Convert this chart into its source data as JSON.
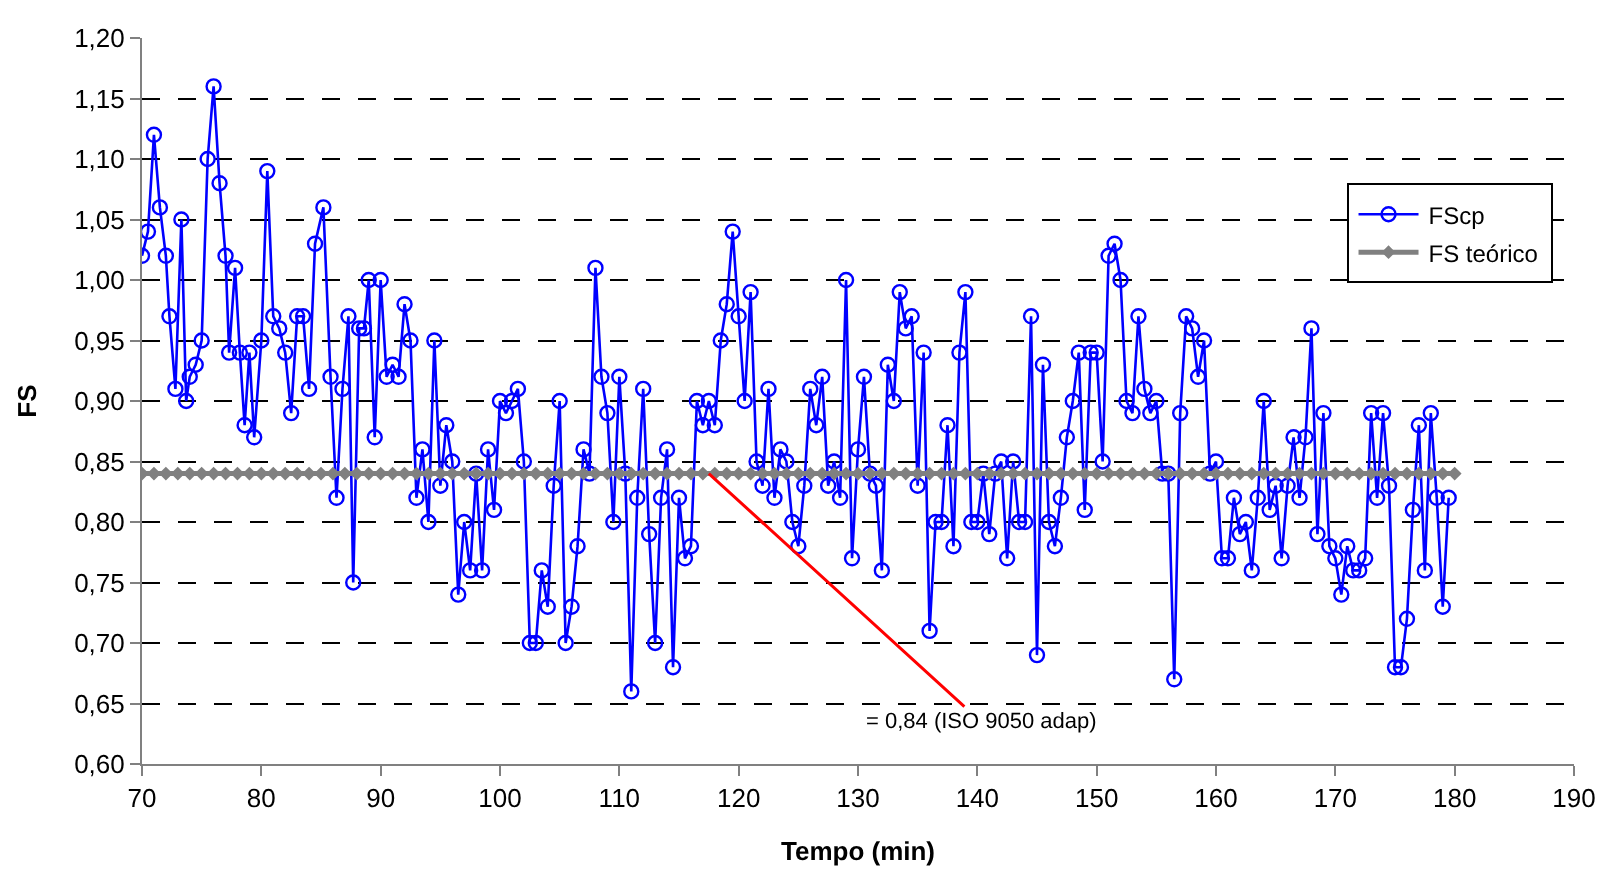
{
  "chart_data": {
    "type": "line",
    "xlabel": "Tempo (min)",
    "ylabel": "FS",
    "xlim": [
      70,
      190
    ],
    "xticks": [
      70,
      80,
      90,
      100,
      110,
      120,
      130,
      140,
      150,
      160,
      170,
      180,
      190
    ],
    "ylim": [
      0.6,
      1.2
    ],
    "yticks": [
      {
        "value": 0.6,
        "label": "0,60"
      },
      {
        "value": 0.65,
        "label": "0,65"
      },
      {
        "value": 0.7,
        "label": "0,70"
      },
      {
        "value": 0.75,
        "label": "0,75"
      },
      {
        "value": 0.8,
        "label": "0,80"
      },
      {
        "value": 0.85,
        "label": "0,85"
      },
      {
        "value": 0.9,
        "label": "0,90"
      },
      {
        "value": 0.95,
        "label": "0,95"
      },
      {
        "value": 1.0,
        "label": "1,00"
      },
      {
        "value": 1.05,
        "label": "1,05"
      },
      {
        "value": 1.1,
        "label": "1,10"
      },
      {
        "value": 1.15,
        "label": "1,15"
      },
      {
        "value": 1.2,
        "label": "1,20"
      }
    ],
    "grid": "y",
    "legend": "top right",
    "annotations": [
      {
        "text": "= 0,84 (ISO 9050 adap)",
        "x": 117.5,
        "y": 0.84
      }
    ],
    "series": [
      {
        "name": "FScp",
        "color": "#0000ff",
        "marker": "circle",
        "line_style": "solid",
        "x": [
          70.0,
          70.5,
          71.0,
          71.5,
          72.0,
          72.3,
          72.8,
          73.3,
          73.7,
          74.0,
          74.5,
          75.0,
          75.5,
          76.0,
          76.5,
          77.0,
          77.3,
          77.8,
          78.2,
          78.6,
          79.0,
          79.4,
          80.0,
          80.5,
          81.0,
          81.5,
          82.0,
          82.5,
          83.0,
          83.5,
          84.0,
          84.5,
          85.2,
          85.8,
          86.3,
          86.8,
          87.3,
          87.7,
          88.2,
          88.6,
          89.0,
          89.5,
          90.0,
          90.5,
          91.0,
          91.5,
          92.0,
          92.5,
          93.0,
          93.5,
          94.0,
          94.5,
          95.0,
          95.5,
          96.0,
          96.5,
          97.0,
          97.5,
          98.0,
          98.5,
          99.0,
          99.5,
          100.0,
          100.5,
          101.0,
          101.5,
          102.0,
          102.5,
          103.0,
          103.5,
          104.0,
          104.5,
          105.0,
          105.5,
          106.0,
          106.5,
          107.0,
          107.5,
          108.0,
          108.5,
          109.0,
          109.5,
          110.0,
          110.5,
          111.0,
          111.5,
          112.0,
          112.5,
          113.0,
          113.5,
          114.0,
          114.5,
          115.0,
          115.5,
          116.0,
          116.5,
          117.0,
          117.5,
          118.0,
          118.5,
          119.0,
          119.5,
          120.0,
          120.5,
          121.0,
          121.5,
          122.0,
          122.5,
          123.0,
          123.5,
          124.0,
          124.5,
          125.0,
          125.5,
          126.0,
          126.5,
          127.0,
          127.5,
          128.0,
          128.5,
          129.0,
          129.5,
          130.0,
          130.5,
          131.0,
          131.5,
          132.0,
          132.5,
          133.0,
          133.5,
          134.0,
          134.5,
          135.0,
          135.5,
          136.0,
          136.5,
          137.0,
          137.5,
          138.0,
          138.5,
          139.0,
          139.5,
          140.0,
          140.5,
          141.0,
          141.5,
          142.0,
          142.5,
          143.0,
          143.5,
          144.0,
          144.5,
          145.0,
          145.5,
          146.0,
          146.5,
          147.0,
          147.5,
          148.0,
          148.5,
          149.0,
          149.5,
          150.0,
          150.5,
          151.0,
          151.5,
          152.0,
          152.5,
          153.0,
          153.5,
          154.0,
          154.5,
          155.0,
          155.5,
          156.0,
          156.5,
          157.0,
          157.5,
          158.0,
          158.5,
          159.0,
          159.5,
          160.0,
          160.5,
          161.0,
          161.5,
          162.0,
          162.5,
          163.0,
          163.5,
          164.0,
          164.5,
          165.0,
          165.5,
          166.0,
          166.5,
          167.0,
          167.5,
          168.0,
          168.5,
          169.0,
          169.5,
          170.0,
          170.5,
          171.0,
          171.5,
          172.0,
          172.5,
          173.0,
          173.5,
          174.0,
          174.5,
          175.0,
          175.5,
          176.0,
          176.5,
          177.0,
          177.5,
          178.0,
          178.5,
          179.0,
          179.5
        ],
        "values": [
          1.02,
          1.04,
          1.12,
          1.06,
          1.02,
          0.97,
          0.91,
          1.05,
          0.9,
          0.92,
          0.93,
          0.95,
          1.1,
          1.16,
          1.08,
          1.02,
          0.94,
          1.01,
          0.94,
          0.88,
          0.94,
          0.87,
          0.95,
          1.09,
          0.97,
          0.96,
          0.94,
          0.89,
          0.97,
          0.97,
          0.91,
          1.03,
          1.06,
          0.92,
          0.82,
          0.91,
          0.97,
          0.75,
          0.96,
          0.96,
          1.0,
          0.87,
          1.0,
          0.92,
          0.93,
          0.92,
          0.98,
          0.95,
          0.82,
          0.86,
          0.8,
          0.95,
          0.83,
          0.88,
          0.85,
          0.74,
          0.8,
          0.76,
          0.84,
          0.76,
          0.86,
          0.81,
          0.9,
          0.89,
          0.9,
          0.91,
          0.85,
          0.7,
          0.7,
          0.76,
          0.73,
          0.83,
          0.9,
          0.7,
          0.73,
          0.78,
          0.86,
          0.84,
          1.01,
          0.92,
          0.89,
          0.8,
          0.92,
          0.84,
          0.66,
          0.82,
          0.91,
          0.79,
          0.7,
          0.82,
          0.86,
          0.68,
          0.82,
          0.77,
          0.78,
          0.9,
          0.88,
          0.9,
          0.88,
          0.95,
          0.98,
          1.04,
          0.97,
          0.9,
          0.99,
          0.85,
          0.83,
          0.91,
          0.82,
          0.86,
          0.85,
          0.8,
          0.78,
          0.83,
          0.91,
          0.88,
          0.92,
          0.83,
          0.85,
          0.82,
          1.0,
          0.77,
          0.86,
          0.92,
          0.84,
          0.83,
          0.76,
          0.93,
          0.9,
          0.99,
          0.96,
          0.97,
          0.83,
          0.94,
          0.71,
          0.8,
          0.8,
          0.88,
          0.78,
          0.94,
          0.99,
          0.8,
          0.8,
          0.84,
          0.79,
          0.84,
          0.85,
          0.77,
          0.85,
          0.8,
          0.8,
          0.97,
          0.69,
          0.93,
          0.8,
          0.78,
          0.82,
          0.87,
          0.9,
          0.94,
          0.81,
          0.94,
          0.94,
          0.85,
          1.02,
          1.03,
          1.0,
          0.9,
          0.89,
          0.97,
          0.91,
          0.89,
          0.9,
          0.84,
          0.84,
          0.67,
          0.89,
          0.97,
          0.96,
          0.92,
          0.95,
          0.84,
          0.85,
          0.77,
          0.77,
          0.82,
          0.79,
          0.8,
          0.76,
          0.82,
          0.9,
          0.81,
          0.83,
          0.77,
          0.83,
          0.87,
          0.82,
          0.87,
          0.96,
          0.79,
          0.89,
          0.78,
          0.77,
          0.74,
          0.78,
          0.76,
          0.76,
          0.77,
          0.89,
          0.82,
          0.89,
          0.83,
          0.68,
          0.68,
          0.72,
          0.81,
          0.88,
          0.76,
          0.89,
          0.82,
          0.73,
          0.82
        ]
      },
      {
        "name": "FS teórico",
        "color": "#808080",
        "marker": "diamond",
        "line_style": "solid",
        "x": [
          70,
          71,
          72,
          73,
          74,
          75,
          76,
          77,
          78,
          79,
          80,
          81,
          82,
          83,
          84,
          85,
          86,
          87,
          88,
          89,
          90,
          91,
          92,
          93,
          94,
          95,
          96,
          97,
          98,
          99,
          100,
          101,
          102,
          103,
          104,
          105,
          106,
          107,
          108,
          109,
          110,
          111,
          112,
          113,
          114,
          115,
          116,
          117,
          118,
          119,
          120,
          121,
          122,
          123,
          124,
          125,
          126,
          127,
          128,
          129,
          130,
          131,
          132,
          133,
          134,
          135,
          136,
          137,
          138,
          139,
          140,
          141,
          142,
          143,
          144,
          145,
          146,
          147,
          148,
          149,
          150,
          151,
          152,
          153,
          154,
          155,
          156,
          157,
          158,
          159,
          160,
          161,
          162,
          163,
          164,
          165,
          166,
          167,
          168,
          169,
          170,
          171,
          172,
          173,
          174,
          175,
          176,
          177,
          178,
          179,
          180
        ],
        "values": [
          0.84,
          0.84,
          0.84,
          0.84,
          0.84,
          0.84,
          0.84,
          0.84,
          0.84,
          0.84,
          0.84,
          0.84,
          0.84,
          0.84,
          0.84,
          0.84,
          0.84,
          0.84,
          0.84,
          0.84,
          0.84,
          0.84,
          0.84,
          0.84,
          0.84,
          0.84,
          0.84,
          0.84,
          0.84,
          0.84,
          0.84,
          0.84,
          0.84,
          0.84,
          0.84,
          0.84,
          0.84,
          0.84,
          0.84,
          0.84,
          0.84,
          0.84,
          0.84,
          0.84,
          0.84,
          0.84,
          0.84,
          0.84,
          0.84,
          0.84,
          0.84,
          0.84,
          0.84,
          0.84,
          0.84,
          0.84,
          0.84,
          0.84,
          0.84,
          0.84,
          0.84,
          0.84,
          0.84,
          0.84,
          0.84,
          0.84,
          0.84,
          0.84,
          0.84,
          0.84,
          0.84,
          0.84,
          0.84,
          0.84,
          0.84,
          0.84,
          0.84,
          0.84,
          0.84,
          0.84,
          0.84,
          0.84,
          0.84,
          0.84,
          0.84,
          0.84,
          0.84,
          0.84,
          0.84,
          0.84,
          0.84,
          0.84,
          0.84,
          0.84,
          0.84,
          0.84,
          0.84,
          0.84,
          0.84,
          0.84,
          0.84,
          0.84,
          0.84,
          0.84,
          0.84,
          0.84,
          0.84,
          0.84,
          0.84,
          0.84,
          0.84
        ]
      }
    ]
  }
}
